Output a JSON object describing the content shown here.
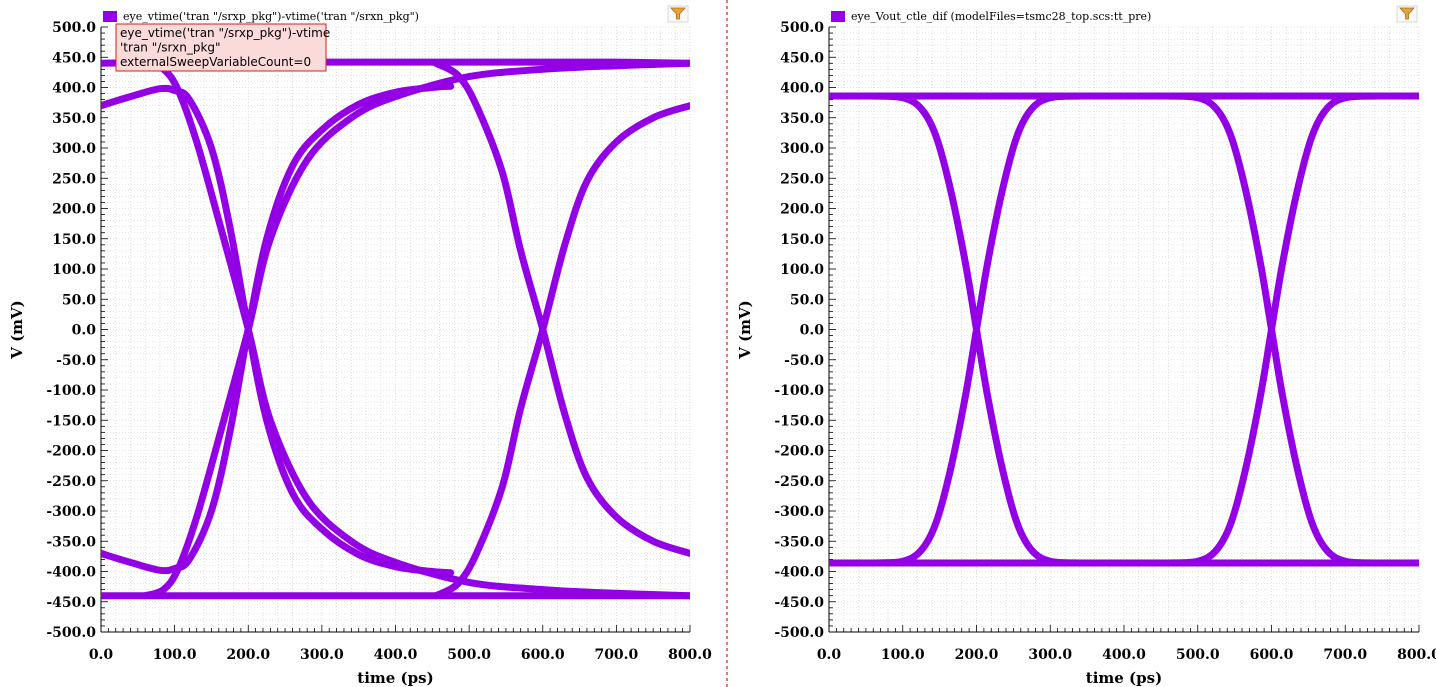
{
  "chart_data": [
    {
      "type": "line",
      "title": "",
      "legend": "eye_vtime('tran \"/srxp_pkg\")-vtime('tran \"/srxn_pkg\")",
      "legend_position": "top-left",
      "xlabel": "time (ps)",
      "ylabel": "V (mV)",
      "xlim": [
        0,
        800
      ],
      "ylim": [
        -500,
        500
      ],
      "grid": true,
      "x_ticks": [
        0,
        100,
        200,
        300,
        400,
        500,
        600,
        700,
        800
      ],
      "x_tick_labels": [
        "0.0",
        "100.0",
        "200.0",
        "300.0",
        "400.0",
        "500.0",
        "600.0",
        "700.0",
        "800.0"
      ],
      "y_ticks": [
        500,
        450,
        400,
        350,
        300,
        250,
        200,
        150,
        100,
        50,
        0,
        -50,
        -100,
        -150,
        -200,
        -250,
        -300,
        -350,
        -400,
        -450,
        -500
      ],
      "y_tick_labels": [
        "500.0",
        "450.0",
        "400.0",
        "350.0",
        "300.0",
        "250.0",
        "200.0",
        "150.0",
        "100.0",
        "50.0",
        "0.0",
        "-50.0",
        "-100.0",
        "-150.0",
        "-200.0",
        "-250.0",
        "-300.0",
        "-350.0",
        "-400.0",
        "-450.0",
        "-500.0"
      ],
      "color": "#9400e6",
      "tooltip_lines": [
        "eye_vtime('tran \"/srxp_pkg\")-vtime",
        "'tran \"/srxn_pkg\"",
        "externalSweepVariableCount=0"
      ],
      "series": [
        {
          "values": [
            [
              0,
              440
            ],
            [
              100,
              442
            ],
            [
              200,
              442
            ],
            [
              300,
              442
            ],
            [
              400,
              442
            ],
            [
              500,
              442
            ],
            [
              600,
              442
            ],
            [
              700,
              442
            ],
            [
              800,
              440
            ]
          ]
        },
        {
          "values": [
            [
              0,
              -440
            ],
            [
              100,
              -440
            ],
            [
              200,
              -440
            ],
            [
              300,
              -440
            ],
            [
              400,
              -440
            ],
            [
              500,
              -440
            ],
            [
              600,
              -440
            ],
            [
              700,
              -440
            ],
            [
              800,
              -440
            ]
          ]
        },
        {
          "values": [
            [
              0,
              370
            ],
            [
              40,
              385
            ],
            [
              80,
              398
            ],
            [
              100,
              395
            ],
            [
              120,
              380
            ],
            [
              150,
              300
            ],
            [
              175,
              170
            ],
            [
              200,
              0
            ],
            [
              225,
              -150
            ],
            [
              260,
              -270
            ],
            [
              300,
              -330
            ],
            [
              350,
              -372
            ],
            [
              400,
              -392
            ],
            [
              450,
              -400
            ],
            [
              475,
              -402
            ]
          ]
        },
        {
          "values": [
            [
              0,
              -370
            ],
            [
              40,
              -385
            ],
            [
              80,
              -398
            ],
            [
              100,
              -395
            ],
            [
              120,
              -380
            ],
            [
              150,
              -300
            ],
            [
              175,
              -170
            ],
            [
              200,
              0
            ],
            [
              225,
              150
            ],
            [
              260,
              270
            ],
            [
              300,
              330
            ],
            [
              350,
              372
            ],
            [
              400,
              392
            ],
            [
              450,
              400
            ],
            [
              475,
              402
            ]
          ]
        },
        {
          "values": [
            [
              60,
              440
            ],
            [
              85,
              430
            ],
            [
              105,
              395
            ],
            [
              130,
              310
            ],
            [
              160,
              180
            ],
            [
              200,
              0
            ],
            [
              230,
              -150
            ],
            [
              280,
              -280
            ],
            [
              340,
              -350
            ],
            [
              400,
              -385
            ],
            [
              500,
              -418
            ],
            [
              600,
              -430
            ],
            [
              700,
              -436
            ],
            [
              800,
              -440
            ]
          ]
        },
        {
          "values": [
            [
              60,
              -440
            ],
            [
              85,
              -430
            ],
            [
              105,
              -395
            ],
            [
              130,
              -310
            ],
            [
              160,
              -180
            ],
            [
              200,
              0
            ],
            [
              230,
              150
            ],
            [
              280,
              280
            ],
            [
              340,
              350
            ],
            [
              400,
              385
            ],
            [
              500,
              418
            ],
            [
              600,
              430
            ],
            [
              700,
              436
            ],
            [
              800,
              440
            ]
          ]
        },
        {
          "values": [
            [
              455,
              440
            ],
            [
              485,
              420
            ],
            [
              510,
              370
            ],
            [
              545,
              260
            ],
            [
              570,
              130
            ],
            [
              600,
              0
            ],
            [
              630,
              -140
            ],
            [
              660,
              -245
            ],
            [
              700,
              -310
            ],
            [
              750,
              -350
            ],
            [
              800,
              -370
            ]
          ]
        },
        {
          "values": [
            [
              455,
              -440
            ],
            [
              485,
              -420
            ],
            [
              510,
              -370
            ],
            [
              545,
              -260
            ],
            [
              570,
              -130
            ],
            [
              600,
              0
            ],
            [
              630,
              140
            ],
            [
              660,
              245
            ],
            [
              700,
              310
            ],
            [
              750,
              350
            ],
            [
              800,
              370
            ]
          ]
        }
      ]
    },
    {
      "type": "line",
      "title": "",
      "legend": "eye_Vout_ctle_dif (modelFiles=tsmc28_top.scs:tt_pre)",
      "legend_position": "top-left",
      "xlabel": "time (ps)",
      "ylabel": "V (mV)",
      "xlim": [
        0,
        800
      ],
      "ylim": [
        -500,
        500
      ],
      "grid": true,
      "x_ticks": [
        0,
        100,
        200,
        300,
        400,
        500,
        600,
        700,
        800
      ],
      "x_tick_labels": [
        "0.0",
        "100.0",
        "200.0",
        "300.0",
        "400.0",
        "500.0",
        "600.0",
        "700.0",
        "800.0"
      ],
      "y_ticks": [
        500,
        450,
        400,
        350,
        300,
        250,
        200,
        150,
        100,
        50,
        0,
        -50,
        -100,
        -150,
        -200,
        -250,
        -300,
        -350,
        -400,
        -450,
        -500
      ],
      "y_tick_labels": [
        "500.0",
        "450.0",
        "400.0",
        "350.0",
        "300.0",
        "250.0",
        "200.0",
        "150.0",
        "100.0",
        "50.0",
        "0.0",
        "-50.0",
        "-100.0",
        "-150.0",
        "-200.0",
        "-250.0",
        "-300.0",
        "-350.0",
        "-400.0",
        "-450.0",
        "-500.0"
      ],
      "color": "#9400e6",
      "series": [
        {
          "values": [
            [
              0,
              386
            ],
            [
              100,
              386
            ],
            [
              200,
              386
            ],
            [
              300,
              386
            ],
            [
              400,
              386
            ],
            [
              500,
              386
            ],
            [
              600,
              386
            ],
            [
              700,
              386
            ],
            [
              800,
              386
            ]
          ]
        },
        {
          "values": [
            [
              0,
              -386
            ],
            [
              100,
              -386
            ],
            [
              200,
              -386
            ],
            [
              300,
              -386
            ],
            [
              400,
              -386
            ],
            [
              500,
              -386
            ],
            [
              600,
              -386
            ],
            [
              700,
              -386
            ],
            [
              800,
              -386
            ]
          ]
        },
        {
          "values": [
            [
              60,
              386
            ],
            [
              100,
              383
            ],
            [
              125,
              365
            ],
            [
              145,
              320
            ],
            [
              165,
              230
            ],
            [
              185,
              110
            ],
            [
              200,
              0
            ],
            [
              215,
              -110
            ],
            [
              235,
              -230
            ],
            [
              255,
              -320
            ],
            [
              275,
              -365
            ],
            [
              300,
              -383
            ],
            [
              340,
              -386
            ]
          ]
        },
        {
          "values": [
            [
              60,
              -386
            ],
            [
              100,
              -383
            ],
            [
              125,
              -365
            ],
            [
              145,
              -320
            ],
            [
              165,
              -230
            ],
            [
              185,
              -110
            ],
            [
              200,
              0
            ],
            [
              215,
              110
            ],
            [
              235,
              230
            ],
            [
              255,
              320
            ],
            [
              275,
              365
            ],
            [
              300,
              383
            ],
            [
              340,
              386
            ]
          ]
        },
        {
          "values": [
            [
              460,
              386
            ],
            [
              500,
              383
            ],
            [
              525,
              365
            ],
            [
              545,
              320
            ],
            [
              565,
              230
            ],
            [
              585,
              110
            ],
            [
              600,
              0
            ],
            [
              615,
              -110
            ],
            [
              635,
              -230
            ],
            [
              655,
              -320
            ],
            [
              675,
              -365
            ],
            [
              700,
              -383
            ],
            [
              740,
              -386
            ]
          ]
        },
        {
          "values": [
            [
              460,
              -386
            ],
            [
              500,
              -383
            ],
            [
              525,
              -365
            ],
            [
              545,
              -320
            ],
            [
              565,
              -230
            ],
            [
              585,
              -110
            ],
            [
              600,
              0
            ],
            [
              615,
              110
            ],
            [
              635,
              230
            ],
            [
              655,
              320
            ],
            [
              675,
              365
            ],
            [
              700,
              383
            ],
            [
              740,
              386
            ]
          ]
        }
      ]
    }
  ]
}
